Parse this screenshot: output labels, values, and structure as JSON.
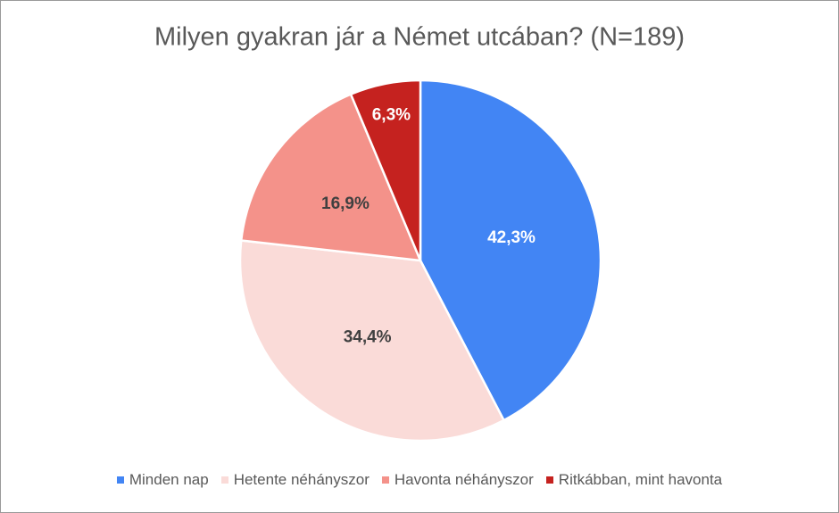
{
  "chart_data": {
    "type": "pie",
    "title": "Milyen gyakran jár a Német utcában? (N=189)",
    "categories": [
      "Minden nap",
      "Hetente néhányszor",
      "Havonta néhányszor",
      "Ritkábban, mint havonta"
    ],
    "values": [
      42.3,
      34.4,
      16.9,
      6.3
    ],
    "value_labels": [
      "42,3%",
      "34,4%",
      "16,9%",
      "6,3%"
    ],
    "colors": [
      "#4285f4",
      "#fadbd8",
      "#f4928a",
      "#c5221f"
    ],
    "legend": "bottom"
  }
}
